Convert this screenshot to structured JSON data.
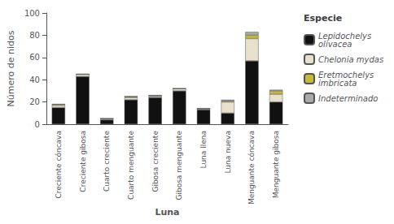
{
  "chart_data": {
    "type": "bar",
    "stacked": true,
    "grid": false,
    "legend": "right",
    "legend_title": "Especie",
    "xlabel": "Luna",
    "ylabel": "Número de nidos",
    "categories": [
      "Creciente cóncava",
      "Creciente gibosa",
      "Cuarto creciente",
      "Cuarto menguante",
      "Gibosa creciente",
      "Gibosa menguante",
      "Luna llena",
      "Luna nueva",
      "Menguante cóncava",
      "Menguante gibosa"
    ],
    "series": [
      {
        "name": "Lepidochelys\nolivacea",
        "color": "#111111",
        "values": [
          15,
          43,
          4,
          22,
          24,
          30,
          13,
          10,
          57,
          20
        ]
      },
      {
        "name": "Chelonia mydas",
        "color": "#e8e2cc",
        "values": [
          2,
          2,
          1,
          2,
          1,
          2,
          1,
          10,
          20,
          7
        ]
      },
      {
        "name": "Eretmochelys\nimbricata",
        "color": "#c8b840",
        "values": [
          1,
          0,
          0,
          1,
          1,
          0,
          0,
          1,
          3,
          3
        ]
      },
      {
        "name": "Indeterminado",
        "color": "#aaaaaa",
        "values": [
          0,
          0,
          0,
          0,
          0,
          0,
          0,
          1,
          3,
          1
        ]
      }
    ],
    "ylim": [
      0,
      100
    ],
    "yticks": [
      0,
      20,
      40,
      60,
      80,
      100
    ]
  }
}
